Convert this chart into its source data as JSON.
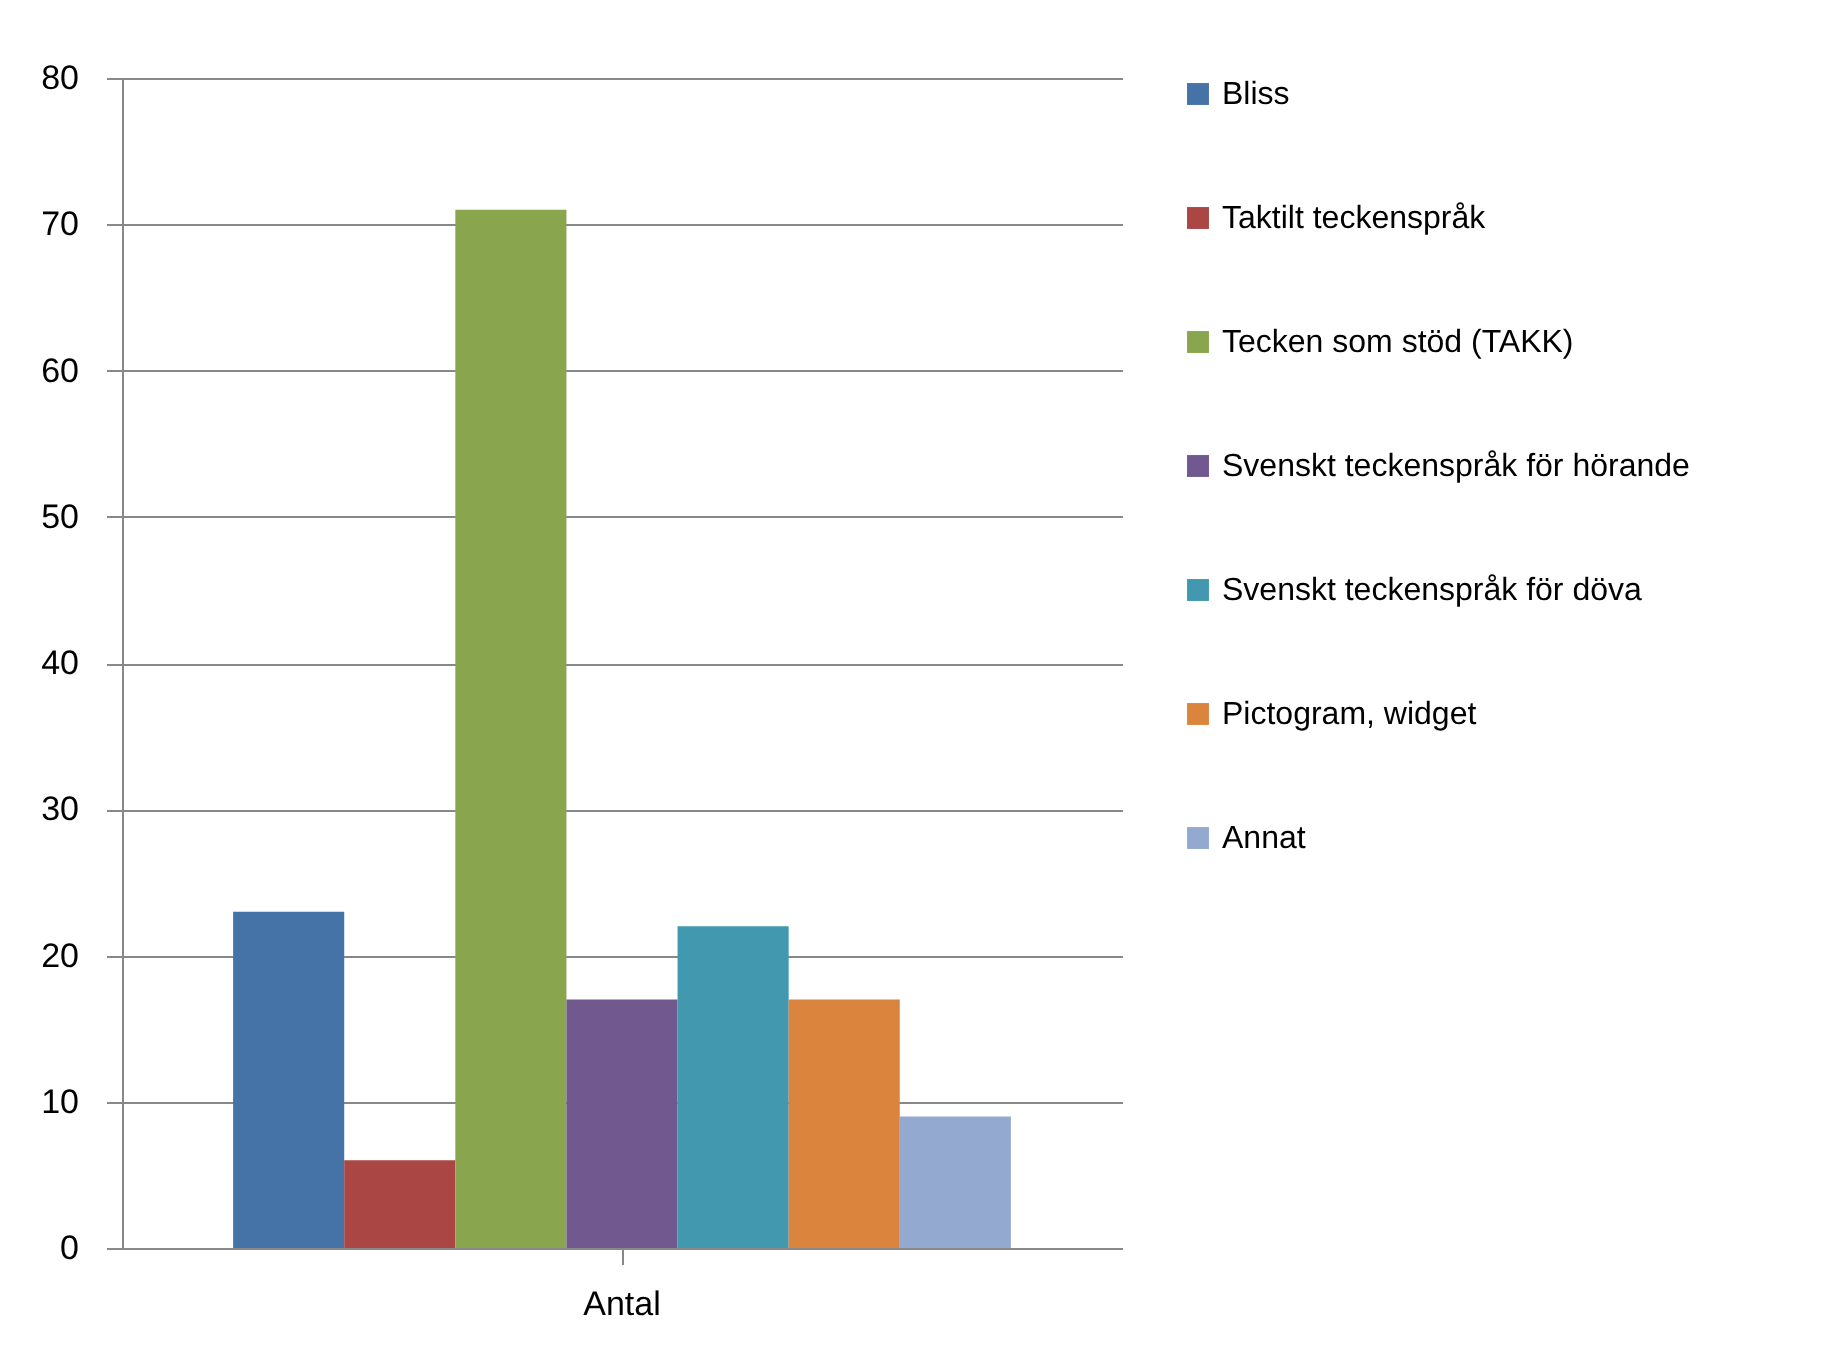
{
  "chart_data": {
    "type": "bar",
    "categories": [
      "Antal"
    ],
    "series": [
      {
        "name": "Bliss",
        "color": "#4572a7",
        "values": [
          23
        ]
      },
      {
        "name": "Taktilt teckenspråk",
        "color": "#aa4643",
        "values": [
          6
        ]
      },
      {
        "name": "Tecken som stöd (TAKK)",
        "color": "#89a54e",
        "values": [
          71
        ]
      },
      {
        "name": "Svenskt teckenspråk för hörande",
        "color": "#71588f",
        "values": [
          17
        ]
      },
      {
        "name": "Svenskt teckenspråk för döva",
        "color": "#4198af",
        "values": [
          22
        ]
      },
      {
        "name": "Pictogram, widget",
        "color": "#db843d",
        "values": [
          17
        ]
      },
      {
        "name": "Annat",
        "color": "#93a9cf",
        "values": [
          9
        ]
      }
    ],
    "ylim": [
      0,
      80
    ],
    "yticks": [
      0,
      10,
      20,
      30,
      40,
      50,
      60,
      70,
      80
    ],
    "grid": "y",
    "legend": "right"
  }
}
